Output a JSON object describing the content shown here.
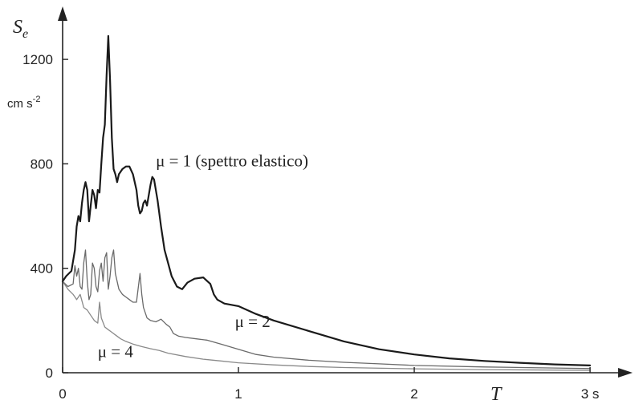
{
  "chart_data": {
    "type": "line",
    "xlabel_main": "T",
    "xlabel_unit": "s",
    "ylabel_main": "S",
    "ylabel_sub": "e",
    "ylabel_unit": "cm s",
    "ylabel_unit_exp": "-2",
    "xlim": [
      0,
      3.05
    ],
    "ylim": [
      0,
      1320
    ],
    "x_ticks": [
      0,
      1,
      2,
      3
    ],
    "x_tick_labels": [
      "0",
      "1",
      "2",
      "3 s"
    ],
    "y_ticks": [
      0,
      400,
      800,
      1200
    ],
    "y_tick_labels": [
      "0",
      "400",
      "800",
      "1200"
    ],
    "series": [
      {
        "name": "μ = 1 (spettro elastico)",
        "stroke": "#1a1a1a",
        "width": 2.2,
        "points": [
          [
            0.0,
            350
          ],
          [
            0.02,
            370
          ],
          [
            0.05,
            390
          ],
          [
            0.07,
            470
          ],
          [
            0.08,
            560
          ],
          [
            0.09,
            600
          ],
          [
            0.1,
            580
          ],
          [
            0.11,
            650
          ],
          [
            0.12,
            700
          ],
          [
            0.13,
            730
          ],
          [
            0.14,
            700
          ],
          [
            0.15,
            580
          ],
          [
            0.16,
            640
          ],
          [
            0.17,
            700
          ],
          [
            0.18,
            680
          ],
          [
            0.19,
            630
          ],
          [
            0.2,
            700
          ],
          [
            0.21,
            690
          ],
          [
            0.22,
            800
          ],
          [
            0.23,
            900
          ],
          [
            0.24,
            950
          ],
          [
            0.25,
            1140
          ],
          [
            0.26,
            1290
          ],
          [
            0.27,
            1120
          ],
          [
            0.28,
            900
          ],
          [
            0.29,
            780
          ],
          [
            0.3,
            760
          ],
          [
            0.31,
            730
          ],
          [
            0.32,
            760
          ],
          [
            0.34,
            780
          ],
          [
            0.36,
            790
          ],
          [
            0.38,
            790
          ],
          [
            0.4,
            760
          ],
          [
            0.42,
            700
          ],
          [
            0.43,
            640
          ],
          [
            0.44,
            610
          ],
          [
            0.45,
            620
          ],
          [
            0.46,
            650
          ],
          [
            0.47,
            660
          ],
          [
            0.48,
            640
          ],
          [
            0.5,
            720
          ],
          [
            0.51,
            750
          ],
          [
            0.52,
            740
          ],
          [
            0.54,
            660
          ],
          [
            0.56,
            560
          ],
          [
            0.58,
            470
          ],
          [
            0.6,
            420
          ],
          [
            0.62,
            370
          ],
          [
            0.65,
            330
          ],
          [
            0.68,
            320
          ],
          [
            0.71,
            345
          ],
          [
            0.75,
            360
          ],
          [
            0.8,
            365
          ],
          [
            0.84,
            340
          ],
          [
            0.86,
            300
          ],
          [
            0.88,
            280
          ],
          [
            0.92,
            265
          ],
          [
            1.0,
            255
          ],
          [
            1.1,
            225
          ],
          [
            1.2,
            200
          ],
          [
            1.4,
            160
          ],
          [
            1.6,
            120
          ],
          [
            1.8,
            90
          ],
          [
            2.0,
            70
          ],
          [
            2.2,
            55
          ],
          [
            2.4,
            45
          ],
          [
            2.6,
            38
          ],
          [
            2.8,
            32
          ],
          [
            3.0,
            28
          ]
        ]
      },
      {
        "name": "μ = 2",
        "stroke": "#6a6a6a",
        "width": 1.3,
        "points": [
          [
            0.0,
            350
          ],
          [
            0.03,
            330
          ],
          [
            0.06,
            340
          ],
          [
            0.07,
            410
          ],
          [
            0.08,
            370
          ],
          [
            0.09,
            400
          ],
          [
            0.1,
            330
          ],
          [
            0.11,
            320
          ],
          [
            0.12,
            420
          ],
          [
            0.13,
            470
          ],
          [
            0.14,
            350
          ],
          [
            0.15,
            280
          ],
          [
            0.16,
            300
          ],
          [
            0.17,
            420
          ],
          [
            0.18,
            400
          ],
          [
            0.19,
            330
          ],
          [
            0.2,
            310
          ],
          [
            0.21,
            390
          ],
          [
            0.22,
            420
          ],
          [
            0.23,
            350
          ],
          [
            0.24,
            440
          ],
          [
            0.25,
            460
          ],
          [
            0.26,
            320
          ],
          [
            0.27,
            370
          ],
          [
            0.28,
            440
          ],
          [
            0.29,
            470
          ],
          [
            0.3,
            380
          ],
          [
            0.32,
            320
          ],
          [
            0.34,
            300
          ],
          [
            0.36,
            290
          ],
          [
            0.38,
            280
          ],
          [
            0.4,
            270
          ],
          [
            0.42,
            270
          ],
          [
            0.44,
            380
          ],
          [
            0.45,
            300
          ],
          [
            0.46,
            250
          ],
          [
            0.48,
            210
          ],
          [
            0.5,
            200
          ],
          [
            0.53,
            195
          ],
          [
            0.56,
            205
          ],
          [
            0.59,
            185
          ],
          [
            0.61,
            175
          ],
          [
            0.63,
            150
          ],
          [
            0.66,
            140
          ],
          [
            0.7,
            135
          ],
          [
            0.76,
            130
          ],
          [
            0.82,
            125
          ],
          [
            0.9,
            110
          ],
          [
            1.0,
            90
          ],
          [
            1.1,
            70
          ],
          [
            1.2,
            60
          ],
          [
            1.4,
            48
          ],
          [
            1.6,
            40
          ],
          [
            1.8,
            34
          ],
          [
            2.0,
            28
          ],
          [
            2.4,
            22
          ],
          [
            2.8,
            18
          ],
          [
            3.0,
            16
          ]
        ]
      },
      {
        "name": "μ = 4",
        "stroke": "#8a8a8a",
        "width": 1.3,
        "points": [
          [
            0.0,
            350
          ],
          [
            0.03,
            320
          ],
          [
            0.06,
            300
          ],
          [
            0.08,
            280
          ],
          [
            0.1,
            300
          ],
          [
            0.12,
            250
          ],
          [
            0.14,
            240
          ],
          [
            0.16,
            220
          ],
          [
            0.18,
            200
          ],
          [
            0.2,
            190
          ],
          [
            0.21,
            270
          ],
          [
            0.22,
            210
          ],
          [
            0.24,
            175
          ],
          [
            0.26,
            165
          ],
          [
            0.28,
            155
          ],
          [
            0.3,
            145
          ],
          [
            0.33,
            130
          ],
          [
            0.36,
            120
          ],
          [
            0.4,
            110
          ],
          [
            0.45,
            100
          ],
          [
            0.5,
            92
          ],
          [
            0.55,
            85
          ],
          [
            0.6,
            75
          ],
          [
            0.7,
            62
          ],
          [
            0.8,
            52
          ],
          [
            0.9,
            45
          ],
          [
            1.0,
            38
          ],
          [
            1.2,
            30
          ],
          [
            1.4,
            24
          ],
          [
            1.6,
            20
          ],
          [
            2.0,
            15
          ],
          [
            2.4,
            12
          ],
          [
            2.8,
            10
          ],
          [
            3.0,
            9
          ]
        ]
      }
    ],
    "annotations": [
      {
        "id": "mu1",
        "text": "μ = 1 (spettro elastico)",
        "x": 0.53,
        "y": 790
      },
      {
        "id": "mu2",
        "text": "μ = 2",
        "x": 0.98,
        "y": 175
      },
      {
        "id": "mu4",
        "text": "μ = 4",
        "x": 0.2,
        "y": 60
      }
    ]
  }
}
